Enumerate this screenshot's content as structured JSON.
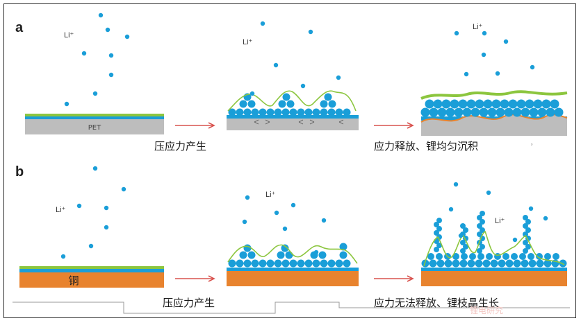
{
  "panels": [
    {
      "letter": "a",
      "substrate": "PET",
      "captions": [
        "压应力产生",
        "应力释放、锂均匀沉积"
      ]
    },
    {
      "letter": "b",
      "substrate": "铜",
      "captions": [
        "压应力产生",
        "应力无法释放、锂枝晶生长"
      ]
    }
  ],
  "ion_label": "Li⁺",
  "stray_mark": "˒",
  "watermark": "锂电研究",
  "colors": {
    "ion": "#1a9ed8",
    "li_deposit": "#1a9ed8",
    "sei_line": "#8cc63f",
    "substrate_pet": "#bdbdbd",
    "substrate_cu": "#e8832e",
    "arrow": "#d9534f",
    "layer_green": "#8cc63f",
    "layer_blue": "#1a9ed8"
  }
}
